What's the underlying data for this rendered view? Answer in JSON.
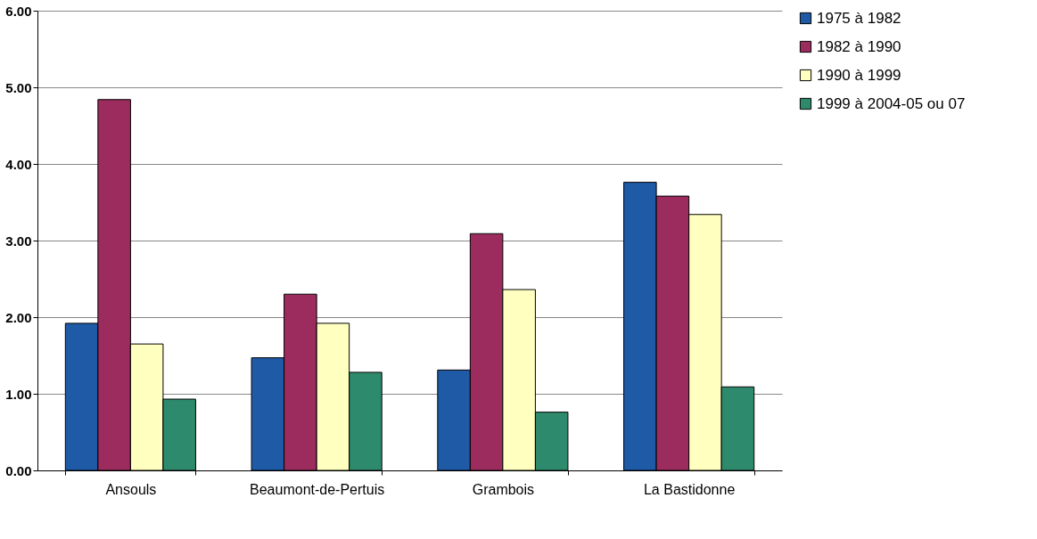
{
  "chart_data": {
    "type": "bar",
    "categories": [
      "Ansouls",
      "Beaumont-de-Pertuis",
      "Grambois",
      "La Bastidonne"
    ],
    "series": [
      {
        "name": "1975 à 1982",
        "color": "#1f5aa6",
        "values": [
          1.92,
          1.47,
          1.31,
          3.76
        ]
      },
      {
        "name": "1982 à 1990",
        "color": "#9c2c5e",
        "values": [
          4.84,
          2.3,
          3.09,
          3.58
        ]
      },
      {
        "name": "1990 à 1999",
        "color": "#ffffc0",
        "values": [
          1.65,
          1.92,
          2.36,
          3.34
        ]
      },
      {
        "name": "1999 à 2004-05 ou 07",
        "color": "#2e8a6c",
        "values": [
          0.93,
          1.28,
          0.76,
          1.09
        ]
      }
    ],
    "ylim": [
      0,
      6
    ],
    "yticks": [
      {
        "value": 0,
        "label": "0.00"
      },
      {
        "value": 1,
        "label": "1.00"
      },
      {
        "value": 2,
        "label": "2.00"
      },
      {
        "value": 3,
        "label": "3.00"
      },
      {
        "value": 4,
        "label": "4.00"
      },
      {
        "value": 5,
        "label": "5.00"
      },
      {
        "value": 6,
        "label": "6.00"
      }
    ],
    "grid": "y",
    "legend": "right"
  }
}
